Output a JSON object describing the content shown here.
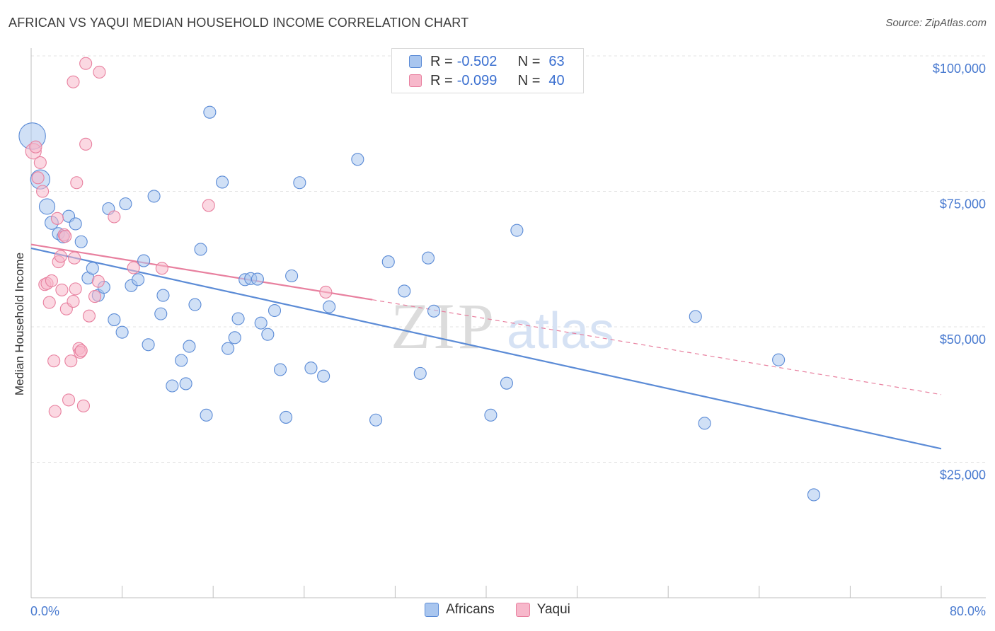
{
  "title": "AFRICAN VS YAQUI MEDIAN HOUSEHOLD INCOME CORRELATION CHART",
  "source": "Source: ZipAtlas.com",
  "watermark": {
    "zip": "ZIP",
    "atlas": "atlas"
  },
  "legend": {
    "rows": [
      {
        "r_label": "R =",
        "r_value": "-0.502",
        "n_label": "N =",
        "n_value": "63",
        "color": "#a9c6ef",
        "stroke": "#5b8bd6"
      },
      {
        "r_label": "R =",
        "r_value": "-0.099",
        "n_label": "N =",
        "n_value": "40",
        "color": "#f7b8cb",
        "stroke": "#e8809f"
      }
    ]
  },
  "bottom_legend": [
    {
      "label": "Africans",
      "color": "#a9c6ef",
      "stroke": "#5b8bd6"
    },
    {
      "label": "Yaqui",
      "color": "#f7b8cb",
      "stroke": "#e8809f"
    }
  ],
  "chart_data": {
    "type": "scatter",
    "title": "AFRICAN VS YAQUI MEDIAN HOUSEHOLD INCOME CORRELATION CHART",
    "xlabel": "",
    "ylabel": "Median Household Income",
    "xlim": [
      0,
      80
    ],
    "ylim": [
      0,
      102000
    ],
    "x_tick_labels": [
      "0.0%",
      "80.0%"
    ],
    "y_ticks": [
      {
        "value": 25000,
        "label": "$25,000"
      },
      {
        "value": 50000,
        "label": "$50,000"
      },
      {
        "value": 75000,
        "label": "$75,000"
      },
      {
        "value": 100000,
        "label": "$100,000"
      }
    ],
    "grid": true,
    "legend_position": "top-center",
    "series": [
      {
        "name": "Africans",
        "color": "#5b8bd6",
        "fill": "#a9c6ef",
        "trend": {
          "x": [
            0,
            80
          ],
          "y": [
            64500,
            27500
          ],
          "style": "solid"
        },
        "points": [
          [
            0.1,
            85200,
            2.2
          ],
          [
            0.8,
            77200,
            1.6
          ],
          [
            1.4,
            72200,
            1.3
          ],
          [
            1.8,
            69200,
            1.1
          ],
          [
            2.4,
            67200,
            1
          ],
          [
            3.3,
            70400,
            1
          ],
          [
            3.9,
            69000,
            1
          ],
          [
            4.4,
            65700,
            1
          ],
          [
            5.0,
            59000,
            1
          ],
          [
            5.4,
            60800,
            1
          ],
          [
            5.9,
            55800,
            1
          ],
          [
            6.4,
            57300,
            1
          ],
          [
            6.8,
            71800,
            1
          ],
          [
            7.3,
            51300,
            1
          ],
          [
            8.0,
            49000,
            1
          ],
          [
            8.3,
            72700,
            1
          ],
          [
            8.8,
            57600,
            1
          ],
          [
            9.4,
            58700,
            1
          ],
          [
            9.9,
            62200,
            1
          ],
          [
            10.3,
            46700,
            1
          ],
          [
            10.8,
            74100,
            1
          ],
          [
            11.4,
            52400,
            1
          ],
          [
            11.6,
            55800,
            1
          ],
          [
            12.4,
            39100,
            1
          ],
          [
            13.2,
            43800,
            1
          ],
          [
            13.6,
            39500,
            1
          ],
          [
            13.9,
            46400,
            1
          ],
          [
            14.4,
            54100,
            1
          ],
          [
            14.9,
            64300,
            1
          ],
          [
            15.4,
            33700,
            1
          ],
          [
            15.7,
            89600,
            1
          ],
          [
            16.8,
            76700,
            1
          ],
          [
            17.3,
            46000,
            1
          ],
          [
            17.9,
            48000,
            1
          ],
          [
            18.2,
            51500,
            1
          ],
          [
            18.8,
            58700,
            1
          ],
          [
            19.3,
            58900,
            1
          ],
          [
            19.9,
            58800,
            1
          ],
          [
            20.2,
            50700,
            1
          ],
          [
            20.8,
            48600,
            1
          ],
          [
            21.4,
            53000,
            1
          ],
          [
            21.9,
            42100,
            1
          ],
          [
            22.4,
            33300,
            1
          ],
          [
            22.9,
            59400,
            1
          ],
          [
            23.6,
            76600,
            1
          ],
          [
            24.6,
            42400,
            1
          ],
          [
            25.7,
            40900,
            1
          ],
          [
            26.2,
            53700,
            1
          ],
          [
            28.7,
            80900,
            1
          ],
          [
            30.3,
            32800,
            1
          ],
          [
            31.4,
            62000,
            1
          ],
          [
            32.8,
            56600,
            1
          ],
          [
            34.2,
            41400,
            1
          ],
          [
            34.9,
            62700,
            1
          ],
          [
            35.4,
            52900,
            1
          ],
          [
            40.4,
            33700,
            1
          ],
          [
            41.8,
            39600,
            1
          ],
          [
            42.7,
            67800,
            1
          ],
          [
            58.4,
            51900,
            1
          ],
          [
            59.2,
            32200,
            1
          ],
          [
            65.7,
            43900,
            1
          ],
          [
            68.8,
            19000,
            1
          ],
          [
            2.8,
            66600,
            1
          ]
        ]
      },
      {
        "name": "Yaqui",
        "color": "#e8809f",
        "fill": "#f7b8cb",
        "trend": {
          "x": [
            0,
            30
          ],
          "y": [
            65200,
            55000
          ],
          "style": "solid",
          "extension": {
            "x": [
              30,
              80
            ],
            "y": [
              55000,
              37500
            ],
            "style": "dashed"
          }
        },
        "points": [
          [
            0.2,
            82400,
            1.3
          ],
          [
            0.4,
            83200,
            1
          ],
          [
            0.6,
            77500,
            1
          ],
          [
            0.8,
            80300,
            1
          ],
          [
            1.0,
            75000,
            1
          ],
          [
            1.2,
            57800,
            1
          ],
          [
            1.4,
            58000,
            1
          ],
          [
            1.6,
            54500,
            1
          ],
          [
            1.8,
            58500,
            1
          ],
          [
            2.0,
            43700,
            1
          ],
          [
            2.1,
            34400,
            1
          ],
          [
            2.3,
            70000,
            1
          ],
          [
            2.4,
            62000,
            1
          ],
          [
            2.6,
            63000,
            1
          ],
          [
            2.7,
            56800,
            1
          ],
          [
            2.9,
            67000,
            1
          ],
          [
            3.0,
            66700,
            1
          ],
          [
            3.1,
            53300,
            1
          ],
          [
            3.3,
            36500,
            1
          ],
          [
            3.5,
            43700,
            1
          ],
          [
            3.7,
            54700,
            1
          ],
          [
            3.8,
            62700,
            1
          ],
          [
            3.9,
            57000,
            1
          ],
          [
            4.0,
            76600,
            1
          ],
          [
            4.2,
            46000,
            1
          ],
          [
            4.3,
            45300,
            1
          ],
          [
            4.4,
            45600,
            1
          ],
          [
            4.6,
            35400,
            1
          ],
          [
            4.8,
            83700,
            1
          ],
          [
            5.1,
            52000,
            1
          ],
          [
            5.6,
            55600,
            1
          ],
          [
            5.9,
            58400,
            1
          ],
          [
            6.0,
            97000,
            1
          ],
          [
            7.3,
            70300,
            1
          ],
          [
            9.0,
            60900,
            1
          ],
          [
            11.5,
            60800,
            1
          ],
          [
            15.6,
            72400,
            1
          ],
          [
            25.9,
            56400,
            1
          ],
          [
            3.7,
            95200,
            1
          ],
          [
            4.8,
            98600,
            1
          ]
        ]
      }
    ]
  }
}
